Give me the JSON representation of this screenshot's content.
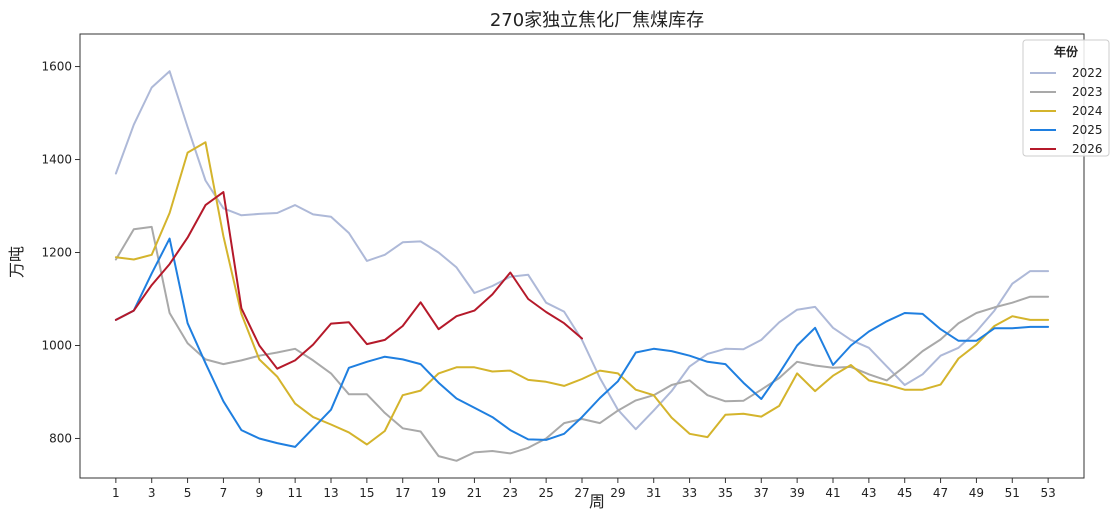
{
  "chart_data": {
    "type": "line",
    "title": "270家独立焦化厂焦煤库存",
    "xlabel": "周",
    "ylabel": "万吨",
    "xlim": [
      -1,
      55
    ],
    "ylim": [
      715,
      1670
    ],
    "xticks": [
      1,
      3,
      5,
      7,
      9,
      11,
      13,
      15,
      17,
      19,
      21,
      23,
      25,
      27,
      29,
      31,
      33,
      35,
      37,
      39,
      41,
      43,
      45,
      47,
      49,
      51,
      53
    ],
    "yticks": [
      800,
      1000,
      1200,
      1400,
      1600
    ],
    "grid": false,
    "legend": {
      "title": "年份",
      "position": "top-right"
    },
    "series": [
      {
        "name": "2022",
        "color": "#aeb9d8",
        "x": [
          1,
          2,
          3,
          4,
          5,
          6,
          7,
          8,
          9,
          10,
          11,
          12,
          13,
          14,
          15,
          16,
          17,
          18,
          19,
          20,
          21,
          22,
          23,
          24,
          25,
          26,
          27,
          28,
          29,
          30,
          31,
          32,
          33,
          34,
          35,
          36,
          37,
          38,
          39,
          40,
          41,
          42,
          43,
          44,
          45,
          46,
          47,
          48,
          49,
          50,
          51,
          52,
          53
        ],
        "values": [
          1370,
          1475,
          1555,
          1590,
          1470,
          1355,
          1295,
          1280,
          1283,
          1285,
          1302,
          1282,
          1277,
          1242,
          1182,
          1195,
          1222,
          1224,
          1200,
          1168,
          1113,
          1128,
          1148,
          1152,
          1092,
          1073,
          1012,
          930,
          862,
          820,
          860,
          902,
          955,
          982,
          993,
          992,
          1012,
          1050,
          1077,
          1083,
          1038,
          1012,
          995,
          955,
          915,
          938,
          978,
          995,
          1030,
          1075,
          1133,
          1160,
          1160
        ]
      },
      {
        "name": "2023",
        "color": "#a9a9a9",
        "x": [
          1,
          2,
          3,
          4,
          5,
          6,
          7,
          8,
          9,
          10,
          11,
          12,
          13,
          14,
          15,
          16,
          17,
          18,
          19,
          20,
          21,
          22,
          23,
          24,
          25,
          26,
          27,
          28,
          29,
          30,
          31,
          32,
          33,
          34,
          35,
          36,
          37,
          38,
          39,
          40,
          41,
          42,
          43,
          44,
          45,
          46,
          47,
          48,
          49,
          50,
          51,
          52,
          53
        ],
        "values": [
          1185,
          1250,
          1255,
          1070,
          1005,
          970,
          960,
          968,
          978,
          985,
          993,
          968,
          940,
          895,
          895,
          855,
          822,
          815,
          762,
          752,
          770,
          773,
          768,
          780,
          800,
          833,
          842,
          833,
          860,
          882,
          893,
          915,
          925,
          893,
          880,
          881,
          905,
          930,
          965,
          957,
          952,
          954,
          938,
          925,
          955,
          988,
          1013,
          1048,
          1070,
          1082,
          1092,
          1105,
          1105
        ]
      },
      {
        "name": "2024",
        "color": "#d4b42c",
        "x": [
          1,
          2,
          3,
          4,
          5,
          6,
          7,
          8,
          9,
          10,
          11,
          12,
          13,
          14,
          15,
          16,
          17,
          18,
          19,
          20,
          21,
          22,
          23,
          24,
          25,
          26,
          27,
          28,
          29,
          30,
          31,
          32,
          33,
          34,
          35,
          36,
          37,
          38,
          39,
          40,
          41,
          42,
          43,
          44,
          45,
          46,
          47,
          48,
          49,
          50,
          51,
          52,
          53
        ],
        "values": [
          1190,
          1185,
          1195,
          1285,
          1415,
          1437,
          1235,
          1068,
          970,
          933,
          875,
          846,
          830,
          813,
          787,
          816,
          893,
          903,
          940,
          953,
          953,
          944,
          946,
          926,
          922,
          913,
          928,
          946,
          940,
          905,
          893,
          845,
          810,
          803,
          851,
          853,
          847,
          870,
          940,
          902,
          935,
          958,
          925,
          916,
          905,
          905,
          916,
          972,
          1002,
          1042,
          1063,
          1055,
          1055
        ]
      },
      {
        "name": "2025",
        "color": "#1f7fe0",
        "x": [
          1,
          2,
          3,
          4,
          5,
          6,
          7,
          8,
          9,
          10,
          11,
          12,
          13,
          14,
          15,
          16,
          17,
          18,
          19,
          20,
          21,
          22,
          23,
          24,
          25,
          26,
          27,
          28,
          29,
          30,
          31,
          32,
          33,
          34,
          35,
          36,
          37,
          38,
          39,
          40,
          41,
          42,
          43,
          44,
          45,
          46,
          47,
          48,
          49,
          50,
          51,
          52,
          53
        ],
        "values": [
          1055,
          1075,
          1155,
          1230,
          1048,
          962,
          880,
          818,
          800,
          790,
          782,
          822,
          862,
          952,
          965,
          976,
          970,
          960,
          920,
          886,
          866,
          846,
          818,
          798,
          797,
          810,
          846,
          887,
          923,
          985,
          993,
          988,
          978,
          965,
          960,
          920,
          885,
          940,
          1000,
          1038,
          958,
          1000,
          1030,
          1052,
          1070,
          1068,
          1035,
          1010,
          1010,
          1037,
          1037,
          1040,
          1040
        ]
      },
      {
        "name": "2026",
        "color": "#b5192a",
        "x": [
          1,
          2,
          3,
          4,
          5,
          6,
          7,
          8,
          9,
          10,
          11,
          12,
          13,
          14,
          15,
          16,
          17,
          18,
          19,
          20,
          21,
          22,
          23,
          24,
          25,
          26,
          27
        ],
        "values": [
          1055,
          1075,
          1130,
          1175,
          1232,
          1302,
          1330,
          1080,
          1000,
          950,
          968,
          1002,
          1047,
          1050,
          1003,
          1012,
          1042,
          1093,
          1035,
          1063,
          1075,
          1110,
          1157,
          1100,
          1072,
          1048,
          1015
        ]
      }
    ]
  }
}
